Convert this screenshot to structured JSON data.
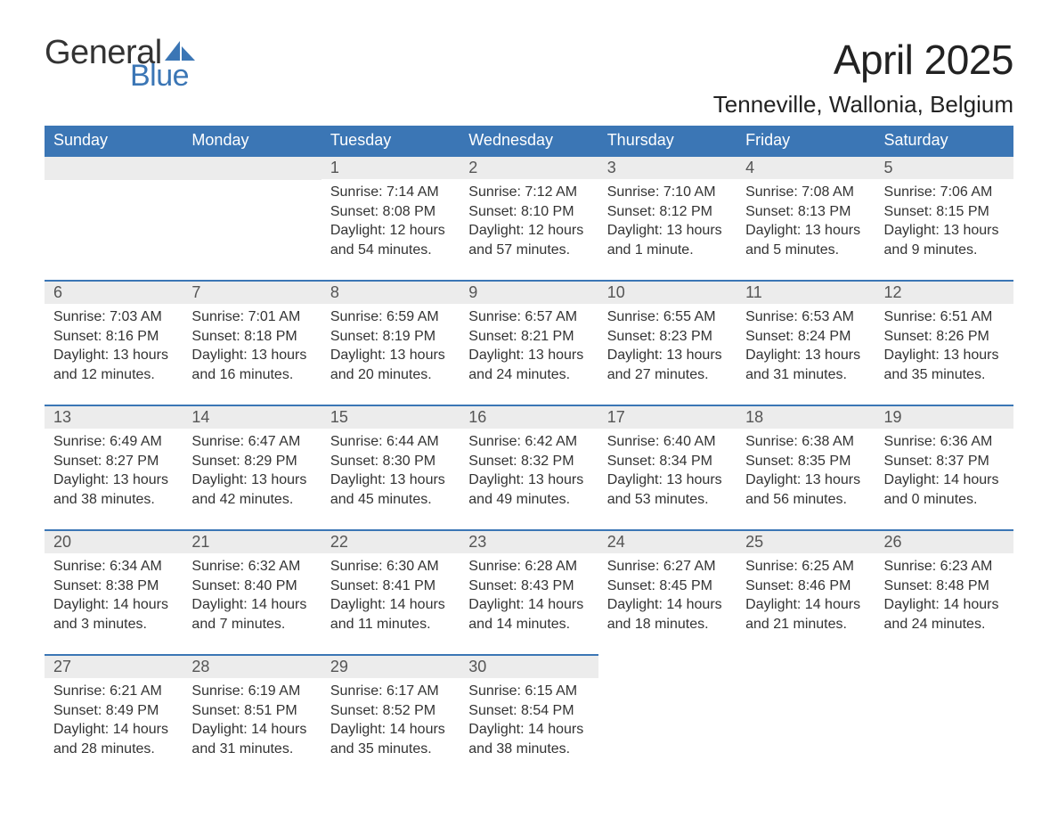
{
  "brand": {
    "general": "General",
    "blue": "Blue",
    "accent_color": "#3b76b5"
  },
  "header": {
    "month_title": "April 2025",
    "location": "Tenneville, Wallonia, Belgium"
  },
  "style": {
    "header_bg": "#3b76b5",
    "header_text": "#ffffff",
    "daybar_bg": "#ececec",
    "daybar_text": "#555555",
    "body_text": "#333333",
    "row_border": "#3b76b5",
    "page_bg": "#ffffff",
    "title_fontsize": 46,
    "location_fontsize": 26,
    "th_fontsize": 18,
    "daynum_fontsize": 18,
    "body_fontsize": 16
  },
  "weekdays": [
    "Sunday",
    "Monday",
    "Tuesday",
    "Wednesday",
    "Thursday",
    "Friday",
    "Saturday"
  ],
  "weeks": [
    [
      null,
      null,
      {
        "n": "1",
        "sunrise": "Sunrise: 7:14 AM",
        "sunset": "Sunset: 8:08 PM",
        "d1": "Daylight: 12 hours",
        "d2": "and 54 minutes."
      },
      {
        "n": "2",
        "sunrise": "Sunrise: 7:12 AM",
        "sunset": "Sunset: 8:10 PM",
        "d1": "Daylight: 12 hours",
        "d2": "and 57 minutes."
      },
      {
        "n": "3",
        "sunrise": "Sunrise: 7:10 AM",
        "sunset": "Sunset: 8:12 PM",
        "d1": "Daylight: 13 hours",
        "d2": "and 1 minute."
      },
      {
        "n": "4",
        "sunrise": "Sunrise: 7:08 AM",
        "sunset": "Sunset: 8:13 PM",
        "d1": "Daylight: 13 hours",
        "d2": "and 5 minutes."
      },
      {
        "n": "5",
        "sunrise": "Sunrise: 7:06 AM",
        "sunset": "Sunset: 8:15 PM",
        "d1": "Daylight: 13 hours",
        "d2": "and 9 minutes."
      }
    ],
    [
      {
        "n": "6",
        "sunrise": "Sunrise: 7:03 AM",
        "sunset": "Sunset: 8:16 PM",
        "d1": "Daylight: 13 hours",
        "d2": "and 12 minutes."
      },
      {
        "n": "7",
        "sunrise": "Sunrise: 7:01 AM",
        "sunset": "Sunset: 8:18 PM",
        "d1": "Daylight: 13 hours",
        "d2": "and 16 minutes."
      },
      {
        "n": "8",
        "sunrise": "Sunrise: 6:59 AM",
        "sunset": "Sunset: 8:19 PM",
        "d1": "Daylight: 13 hours",
        "d2": "and 20 minutes."
      },
      {
        "n": "9",
        "sunrise": "Sunrise: 6:57 AM",
        "sunset": "Sunset: 8:21 PM",
        "d1": "Daylight: 13 hours",
        "d2": "and 24 minutes."
      },
      {
        "n": "10",
        "sunrise": "Sunrise: 6:55 AM",
        "sunset": "Sunset: 8:23 PM",
        "d1": "Daylight: 13 hours",
        "d2": "and 27 minutes."
      },
      {
        "n": "11",
        "sunrise": "Sunrise: 6:53 AM",
        "sunset": "Sunset: 8:24 PM",
        "d1": "Daylight: 13 hours",
        "d2": "and 31 minutes."
      },
      {
        "n": "12",
        "sunrise": "Sunrise: 6:51 AM",
        "sunset": "Sunset: 8:26 PM",
        "d1": "Daylight: 13 hours",
        "d2": "and 35 minutes."
      }
    ],
    [
      {
        "n": "13",
        "sunrise": "Sunrise: 6:49 AM",
        "sunset": "Sunset: 8:27 PM",
        "d1": "Daylight: 13 hours",
        "d2": "and 38 minutes."
      },
      {
        "n": "14",
        "sunrise": "Sunrise: 6:47 AM",
        "sunset": "Sunset: 8:29 PM",
        "d1": "Daylight: 13 hours",
        "d2": "and 42 minutes."
      },
      {
        "n": "15",
        "sunrise": "Sunrise: 6:44 AM",
        "sunset": "Sunset: 8:30 PM",
        "d1": "Daylight: 13 hours",
        "d2": "and 45 minutes."
      },
      {
        "n": "16",
        "sunrise": "Sunrise: 6:42 AM",
        "sunset": "Sunset: 8:32 PM",
        "d1": "Daylight: 13 hours",
        "d2": "and 49 minutes."
      },
      {
        "n": "17",
        "sunrise": "Sunrise: 6:40 AM",
        "sunset": "Sunset: 8:34 PM",
        "d1": "Daylight: 13 hours",
        "d2": "and 53 minutes."
      },
      {
        "n": "18",
        "sunrise": "Sunrise: 6:38 AM",
        "sunset": "Sunset: 8:35 PM",
        "d1": "Daylight: 13 hours",
        "d2": "and 56 minutes."
      },
      {
        "n": "19",
        "sunrise": "Sunrise: 6:36 AM",
        "sunset": "Sunset: 8:37 PM",
        "d1": "Daylight: 14 hours",
        "d2": "and 0 minutes."
      }
    ],
    [
      {
        "n": "20",
        "sunrise": "Sunrise: 6:34 AM",
        "sunset": "Sunset: 8:38 PM",
        "d1": "Daylight: 14 hours",
        "d2": "and 3 minutes."
      },
      {
        "n": "21",
        "sunrise": "Sunrise: 6:32 AM",
        "sunset": "Sunset: 8:40 PM",
        "d1": "Daylight: 14 hours",
        "d2": "and 7 minutes."
      },
      {
        "n": "22",
        "sunrise": "Sunrise: 6:30 AM",
        "sunset": "Sunset: 8:41 PM",
        "d1": "Daylight: 14 hours",
        "d2": "and 11 minutes."
      },
      {
        "n": "23",
        "sunrise": "Sunrise: 6:28 AM",
        "sunset": "Sunset: 8:43 PM",
        "d1": "Daylight: 14 hours",
        "d2": "and 14 minutes."
      },
      {
        "n": "24",
        "sunrise": "Sunrise: 6:27 AM",
        "sunset": "Sunset: 8:45 PM",
        "d1": "Daylight: 14 hours",
        "d2": "and 18 minutes."
      },
      {
        "n": "25",
        "sunrise": "Sunrise: 6:25 AM",
        "sunset": "Sunset: 8:46 PM",
        "d1": "Daylight: 14 hours",
        "d2": "and 21 minutes."
      },
      {
        "n": "26",
        "sunrise": "Sunrise: 6:23 AM",
        "sunset": "Sunset: 8:48 PM",
        "d1": "Daylight: 14 hours",
        "d2": "and 24 minutes."
      }
    ],
    [
      {
        "n": "27",
        "sunrise": "Sunrise: 6:21 AM",
        "sunset": "Sunset: 8:49 PM",
        "d1": "Daylight: 14 hours",
        "d2": "and 28 minutes."
      },
      {
        "n": "28",
        "sunrise": "Sunrise: 6:19 AM",
        "sunset": "Sunset: 8:51 PM",
        "d1": "Daylight: 14 hours",
        "d2": "and 31 minutes."
      },
      {
        "n": "29",
        "sunrise": "Sunrise: 6:17 AM",
        "sunset": "Sunset: 8:52 PM",
        "d1": "Daylight: 14 hours",
        "d2": "and 35 minutes."
      },
      {
        "n": "30",
        "sunrise": "Sunrise: 6:15 AM",
        "sunset": "Sunset: 8:54 PM",
        "d1": "Daylight: 14 hours",
        "d2": "and 38 minutes."
      },
      null,
      null,
      null
    ]
  ]
}
